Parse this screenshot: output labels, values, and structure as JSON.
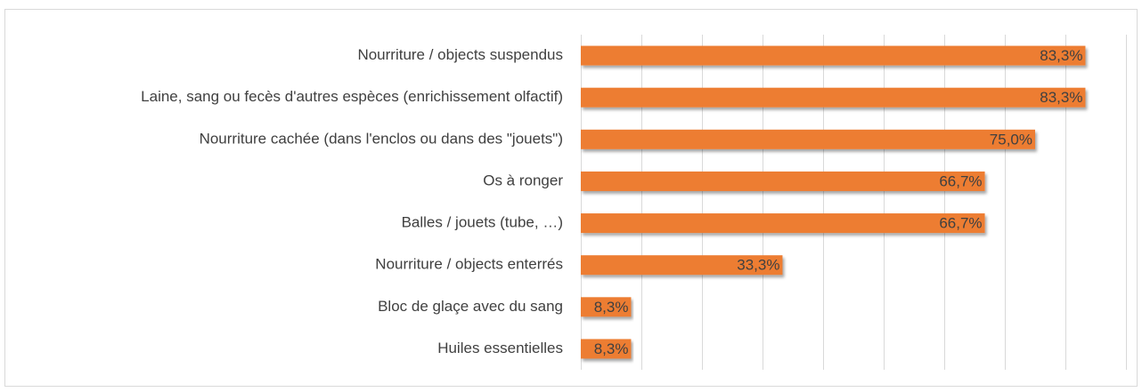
{
  "chart_data": {
    "type": "bar",
    "orientation": "horizontal",
    "categories": [
      "Nourriture / objects suspendus",
      "Laine, sang ou fecès d'autres espèces (enrichissement olfactif)",
      "Nourriture cachée (dans l'enclos ou dans des \"jouets\")",
      "Os à ronger",
      "Balles / jouets (tube, …)",
      "Nourriture / objects enterrés",
      "Bloc de glaçe avec du sang",
      "Huiles essentielles"
    ],
    "values": [
      83.3,
      83.3,
      75.0,
      66.7,
      66.7,
      33.3,
      8.3,
      8.3
    ],
    "value_labels": [
      "83,3%",
      "83,3%",
      "75,0%",
      "66,7%",
      "66,7%",
      "33,3%",
      "8,3%",
      "8,3%"
    ],
    "color": "#ed7d31",
    "xlim": [
      0,
      90
    ],
    "xticks": [
      0,
      10,
      20,
      30,
      40,
      50,
      60,
      70,
      80,
      90
    ],
    "grid": true
  }
}
